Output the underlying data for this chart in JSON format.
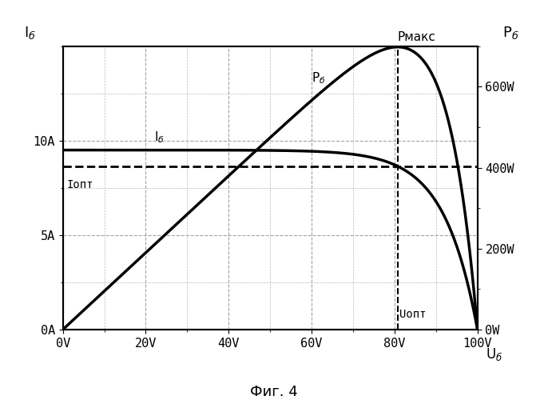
{
  "fig_caption": "Фиг. 4",
  "xlim": [
    0,
    100
  ],
  "ylim_left": [
    0,
    15
  ],
  "ylim_right": [
    0,
    700
  ],
  "xticks": [
    0,
    20,
    40,
    60,
    80,
    100
  ],
  "xtick_labels": [
    "0V",
    "20V",
    "40V",
    "60V",
    "80V",
    "100V"
  ],
  "yticks_left": [
    0,
    5,
    10
  ],
  "ytick_labels_left": [
    "0A",
    "5A",
    "10A"
  ],
  "yticks_right": [
    0,
    200,
    400,
    600
  ],
  "ytick_labels_right": [
    "0W",
    "200W",
    "400W",
    "600W"
  ],
  "Isc": 9.5,
  "Voc": 100.0,
  "knee_sharpness": 8.0,
  "Pmax_label": "Рмакс",
  "Iopt_label": "Iопт",
  "Uopt_label": "Uопт",
  "P_curve_label": "P_б",
  "I_curve_label": "I_б",
  "left_axis_label": "I_б",
  "right_axis_label": "P_б",
  "xaxis_label": "U_б",
  "background_color": "#ffffff",
  "grid_color": "#999999",
  "curve_color": "#000000",
  "font_size": 11,
  "line_width": 2.5
}
